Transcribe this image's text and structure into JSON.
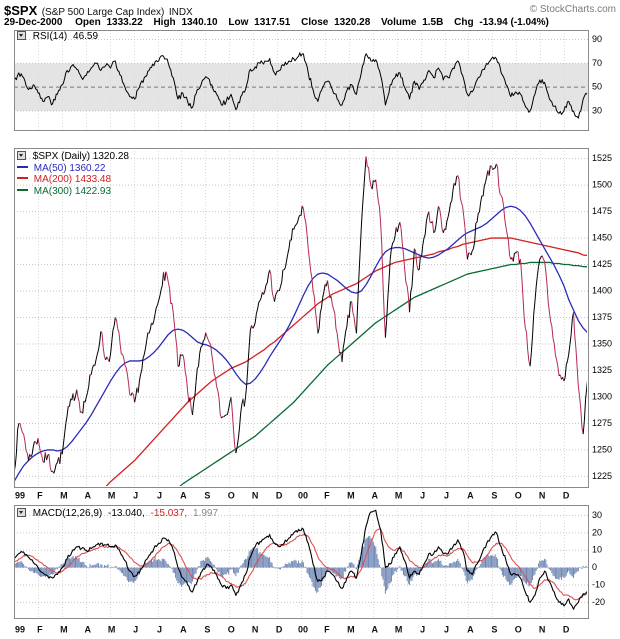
{
  "header": {
    "symbol": "$SPX",
    "name": "(S&P 500 Large Cap Index)",
    "exchange": "INDX",
    "copyright": "© StockCharts.com"
  },
  "quote": {
    "date": "29-Dec-2000",
    "open_label": "Open",
    "open": "1333.22",
    "high_label": "High",
    "high": "1340.10",
    "low_label": "Low",
    "low": "1317.51",
    "close_label": "Close",
    "close": "1320.28",
    "volume_label": "Volume",
    "volume": "1.5B",
    "chg_label": "Chg",
    "chg": "-13.94 (-1.04%)"
  },
  "legend": {
    "rsi": {
      "name": "RSI(14)",
      "value": "46.59"
    },
    "main": [
      {
        "label": "$SPX (Daily) 1320.28",
        "color": "#000000"
      },
      {
        "label": "MA(50) 1360.22",
        "color": "#2b2bbb"
      },
      {
        "label": "MA(200) 1433.48",
        "color": "#d42020"
      },
      {
        "label": "MA(300) 1422.93",
        "color": "#0a6b32"
      }
    ],
    "macd": {
      "name": "MACD(12,26,9)",
      "v1": "-13.040,",
      "v1_color": "#000000",
      "v2": "-15.037,",
      "v2_color": "#d42020",
      "v3": "1.997",
      "v3_color": "#888888"
    }
  },
  "chart_data": [
    {
      "type": "line",
      "title": "RSI(14)",
      "current_value": 46.59,
      "ylim": [
        14,
        98
      ],
      "yticks": [
        30,
        50,
        70,
        90
      ],
      "band": [
        30,
        70
      ],
      "grid": true,
      "series": [
        {
          "name": "RSI",
          "color": "#000000",
          "values": [
            55,
            62,
            58,
            48,
            52,
            45,
            38,
            42,
            36,
            44,
            52,
            64,
            68,
            65,
            58,
            60,
            66,
            70,
            64,
            68,
            66,
            72,
            60,
            50,
            42,
            40,
            50,
            58,
            64,
            68,
            72,
            76,
            70,
            58,
            40,
            45,
            38,
            33,
            48,
            55,
            58,
            52,
            44,
            35,
            38,
            44,
            31,
            42,
            48,
            65,
            67,
            70,
            72,
            74,
            62,
            64,
            68,
            72,
            74,
            76,
            78,
            62,
            48,
            38,
            50,
            55,
            48,
            40,
            35,
            47,
            52,
            44,
            62,
            78,
            72,
            73,
            60,
            35,
            52,
            58,
            62,
            50,
            40,
            55,
            48,
            56,
            64,
            58,
            66,
            56,
            58,
            66,
            72,
            60,
            44,
            46,
            56,
            64,
            70,
            74,
            74,
            62,
            52,
            42,
            46,
            44,
            34,
            30,
            44,
            56,
            54,
            40,
            34,
            28,
            30,
            38,
            30,
            24,
            40,
            46.59
          ]
        }
      ]
    },
    {
      "type": "line",
      "title": "$SPX (Daily)",
      "current_value": 1320.28,
      "ylim": [
        1215,
        1535
      ],
      "yticks": [
        1225,
        1250,
        1275,
        1300,
        1325,
        1350,
        1375,
        1400,
        1425,
        1450,
        1475,
        1500,
        1525
      ],
      "grid": true,
      "legend_position": "top-left",
      "x_axis": {
        "labels": [
          "99",
          "F",
          "M",
          "A",
          "M",
          "J",
          "J",
          "A",
          "S",
          "O",
          "N",
          "D",
          "00",
          "F",
          "M",
          "A",
          "M",
          "J",
          "J",
          "A",
          "S",
          "O",
          "N",
          "D"
        ],
        "bold_labels": [
          "99",
          "00"
        ]
      },
      "series": [
        {
          "name": "$SPX",
          "up_color": "#000000",
          "down_color": "#b5294e",
          "values": [
            1229,
            1275,
            1265,
            1240,
            1253,
            1261,
            1239,
            1245,
            1230,
            1238,
            1246,
            1282,
            1297,
            1307,
            1286,
            1300,
            1321,
            1335,
            1362,
            1335,
            1340,
            1375,
            1350,
            1330,
            1302,
            1295,
            1315,
            1340,
            1360,
            1372,
            1391,
            1418,
            1408,
            1380,
            1329,
            1340,
            1305,
            1283,
            1327,
            1348,
            1357,
            1340,
            1310,
            1280,
            1283,
            1300,
            1247,
            1285,
            1300,
            1363,
            1370,
            1391,
            1400,
            1420,
            1390,
            1400,
            1420,
            1440,
            1458,
            1469,
            1478,
            1440,
            1400,
            1360,
            1394,
            1410,
            1387,
            1360,
            1333,
            1366,
            1390,
            1360,
            1460,
            1527,
            1499,
            1505,
            1465,
            1356,
            1430,
            1452,
            1465,
            1420,
            1380,
            1440,
            1420,
            1450,
            1475,
            1455,
            1480,
            1455,
            1470,
            1495,
            1509,
            1480,
            1430,
            1438,
            1465,
            1490,
            1508,
            1518,
            1520,
            1490,
            1460,
            1430,
            1436,
            1430,
            1365,
            1329,
            1390,
            1430,
            1428,
            1380,
            1350,
            1320,
            1315,
            1340,
            1380,
            1310,
            1265,
            1320.28
          ]
        },
        {
          "name": "MA(50)",
          "color": "#2b2bbb",
          "values": [
            1220,
            1228,
            1235,
            1240,
            1244,
            1247,
            1249,
            1250,
            1250,
            1249,
            1250,
            1253,
            1258,
            1264,
            1270,
            1276,
            1283,
            1291,
            1299,
            1307,
            1315,
            1322,
            1328,
            1332,
            1334,
            1334,
            1334,
            1335,
            1338,
            1342,
            1347,
            1353,
            1359,
            1363,
            1364,
            1363,
            1360,
            1356,
            1352,
            1350,
            1349,
            1347,
            1344,
            1340,
            1335,
            1329,
            1322,
            1316,
            1312,
            1313,
            1317,
            1323,
            1330,
            1338,
            1345,
            1352,
            1359,
            1367,
            1376,
            1386,
            1396,
            1405,
            1412,
            1416,
            1417,
            1416,
            1413,
            1410,
            1406,
            1402,
            1399,
            1398,
            1400,
            1406,
            1414,
            1423,
            1431,
            1437,
            1440,
            1441,
            1441,
            1440,
            1438,
            1436,
            1434,
            1432,
            1431,
            1432,
            1434,
            1437,
            1440,
            1444,
            1448,
            1452,
            1455,
            1457,
            1459,
            1461,
            1464,
            1468,
            1472,
            1476,
            1479,
            1480,
            1479,
            1476,
            1471,
            1464,
            1456,
            1448,
            1440,
            1432,
            1424,
            1415,
            1405,
            1392,
            1382,
            1372,
            1365,
            1360.22
          ]
        },
        {
          "name": "MA(200)",
          "color": "#d42020",
          "values": [
            1120,
            1125,
            1130,
            1135,
            1140,
            1145,
            1150,
            1155,
            1160,
            1165,
            1170,
            1175,
            1180,
            1185,
            1190,
            1195,
            1200,
            1205,
            1210,
            1215,
            1220,
            1224,
            1228,
            1232,
            1236,
            1240,
            1245,
            1250,
            1255,
            1260,
            1265,
            1270,
            1275,
            1280,
            1285,
            1290,
            1295,
            1299,
            1303,
            1307,
            1311,
            1315,
            1318,
            1321,
            1324,
            1327,
            1329,
            1331,
            1333,
            1336,
            1339,
            1342,
            1345,
            1349,
            1352,
            1356,
            1360,
            1364,
            1368,
            1372,
            1376,
            1380,
            1384,
            1388,
            1391,
            1394,
            1397,
            1399,
            1401,
            1403,
            1405,
            1407,
            1410,
            1413,
            1416,
            1419,
            1421,
            1423,
            1425,
            1427,
            1428,
            1429,
            1430,
            1431,
            1432,
            1433,
            1434,
            1435,
            1437,
            1438,
            1439,
            1441,
            1442,
            1444,
            1445,
            1446,
            1447,
            1448,
            1449,
            1450,
            1450,
            1450,
            1450,
            1450,
            1449,
            1448,
            1447,
            1446,
            1445,
            1444,
            1443,
            1442,
            1441,
            1440,
            1439,
            1438,
            1437,
            1436,
            1434,
            1433.48
          ]
        },
        {
          "name": "MA(300)",
          "color": "#0a6b32",
          "values": [
            1090,
            1093,
            1096,
            1099,
            1102,
            1105,
            1108,
            1111,
            1114,
            1117,
            1120,
            1123,
            1126,
            1130,
            1134,
            1138,
            1142,
            1146,
            1150,
            1154,
            1158,
            1162,
            1166,
            1170,
            1174,
            1178,
            1182,
            1186,
            1190,
            1194,
            1198,
            1202,
            1206,
            1210,
            1214,
            1218,
            1221,
            1224,
            1227,
            1230,
            1233,
            1236,
            1239,
            1242,
            1245,
            1248,
            1251,
            1254,
            1257,
            1260,
            1263,
            1267,
            1271,
            1275,
            1279,
            1283,
            1287,
            1291,
            1295,
            1300,
            1305,
            1310,
            1315,
            1320,
            1325,
            1330,
            1334,
            1338,
            1342,
            1346,
            1350,
            1354,
            1358,
            1362,
            1366,
            1370,
            1373,
            1376,
            1379,
            1382,
            1385,
            1388,
            1391,
            1394,
            1396,
            1398,
            1400,
            1402,
            1404,
            1406,
            1408,
            1410,
            1412,
            1414,
            1416,
            1417,
            1418,
            1419,
            1420,
            1421,
            1422,
            1423,
            1424,
            1425,
            1425,
            1426,
            1426,
            1427,
            1427,
            1427,
            1427,
            1427,
            1426,
            1426,
            1425,
            1425,
            1424,
            1424,
            1423,
            1422.93
          ]
        }
      ]
    },
    {
      "type": "macd",
      "title": "MACD(12,26,9)",
      "current_values": [
        -13.04,
        -15.037,
        1.997
      ],
      "ylim": [
        -29,
        36
      ],
      "yticks": [
        -20,
        -10,
        0,
        10,
        20,
        30
      ],
      "grid": true,
      "histogram_color": "#6f87b5",
      "series": [
        {
          "name": "MACD",
          "color": "#000000",
          "values": [
            5,
            8,
            9,
            6,
            3,
            0,
            -3,
            -5,
            -6,
            -4,
            0,
            5,
            9,
            12,
            11,
            10,
            11,
            13,
            14,
            13,
            12,
            13,
            9,
            4,
            -2,
            -5,
            -3,
            2,
            7,
            11,
            14,
            17,
            16,
            10,
            0,
            -6,
            -10,
            -14,
            -8,
            -2,
            2,
            0,
            -4,
            -10,
            -12,
            -10,
            -16,
            -10,
            -4,
            6,
            12,
            15,
            17,
            19,
            14,
            12,
            14,
            17,
            20,
            22,
            22,
            14,
            2,
            -8,
            -6,
            -2,
            -4,
            -8,
            -12,
            -6,
            -2,
            -6,
            8,
            24,
            32,
            33,
            22,
            0,
            2,
            8,
            12,
            4,
            -6,
            -2,
            -4,
            2,
            8,
            8,
            12,
            8,
            8,
            12,
            16,
            10,
            -2,
            -4,
            2,
            8,
            14,
            18,
            20,
            12,
            4,
            -4,
            -4,
            -6,
            -14,
            -20,
            -16,
            -6,
            -2,
            -8,
            -14,
            -20,
            -22,
            -18,
            -24,
            -20,
            -15,
            -13.04
          ]
        },
        {
          "name": "Signal",
          "color": "#e05050",
          "values": [
            3,
            5,
            7,
            7,
            6,
            4,
            2,
            0,
            -2,
            -3,
            -2,
            0,
            3,
            6,
            8,
            9,
            10,
            11,
            12,
            12,
            12,
            12,
            11,
            9,
            6,
            3,
            1,
            1,
            3,
            6,
            9,
            12,
            14,
            13,
            9,
            4,
            -1,
            -6,
            -7,
            -6,
            -4,
            -3,
            -3,
            -5,
            -8,
            -9,
            -11,
            -11,
            -9,
            -4,
            1,
            6,
            10,
            13,
            14,
            13,
            13,
            14,
            16,
            18,
            19,
            18,
            13,
            6,
            2,
            0,
            -1,
            -3,
            -6,
            -6,
            -5,
            -5,
            -1,
            7,
            15,
            21,
            22,
            15,
            11,
            10,
            11,
            9,
            4,
            2,
            0,
            0,
            3,
            5,
            7,
            7,
            7,
            9,
            11,
            11,
            7,
            3,
            3,
            4,
            7,
            11,
            14,
            14,
            11,
            6,
            2,
            -1,
            -5,
            -10,
            -12,
            -10,
            -7,
            -7,
            -9,
            -13,
            -16,
            -16,
            -18,
            -18,
            -16,
            -15.04
          ]
        }
      ]
    }
  ]
}
